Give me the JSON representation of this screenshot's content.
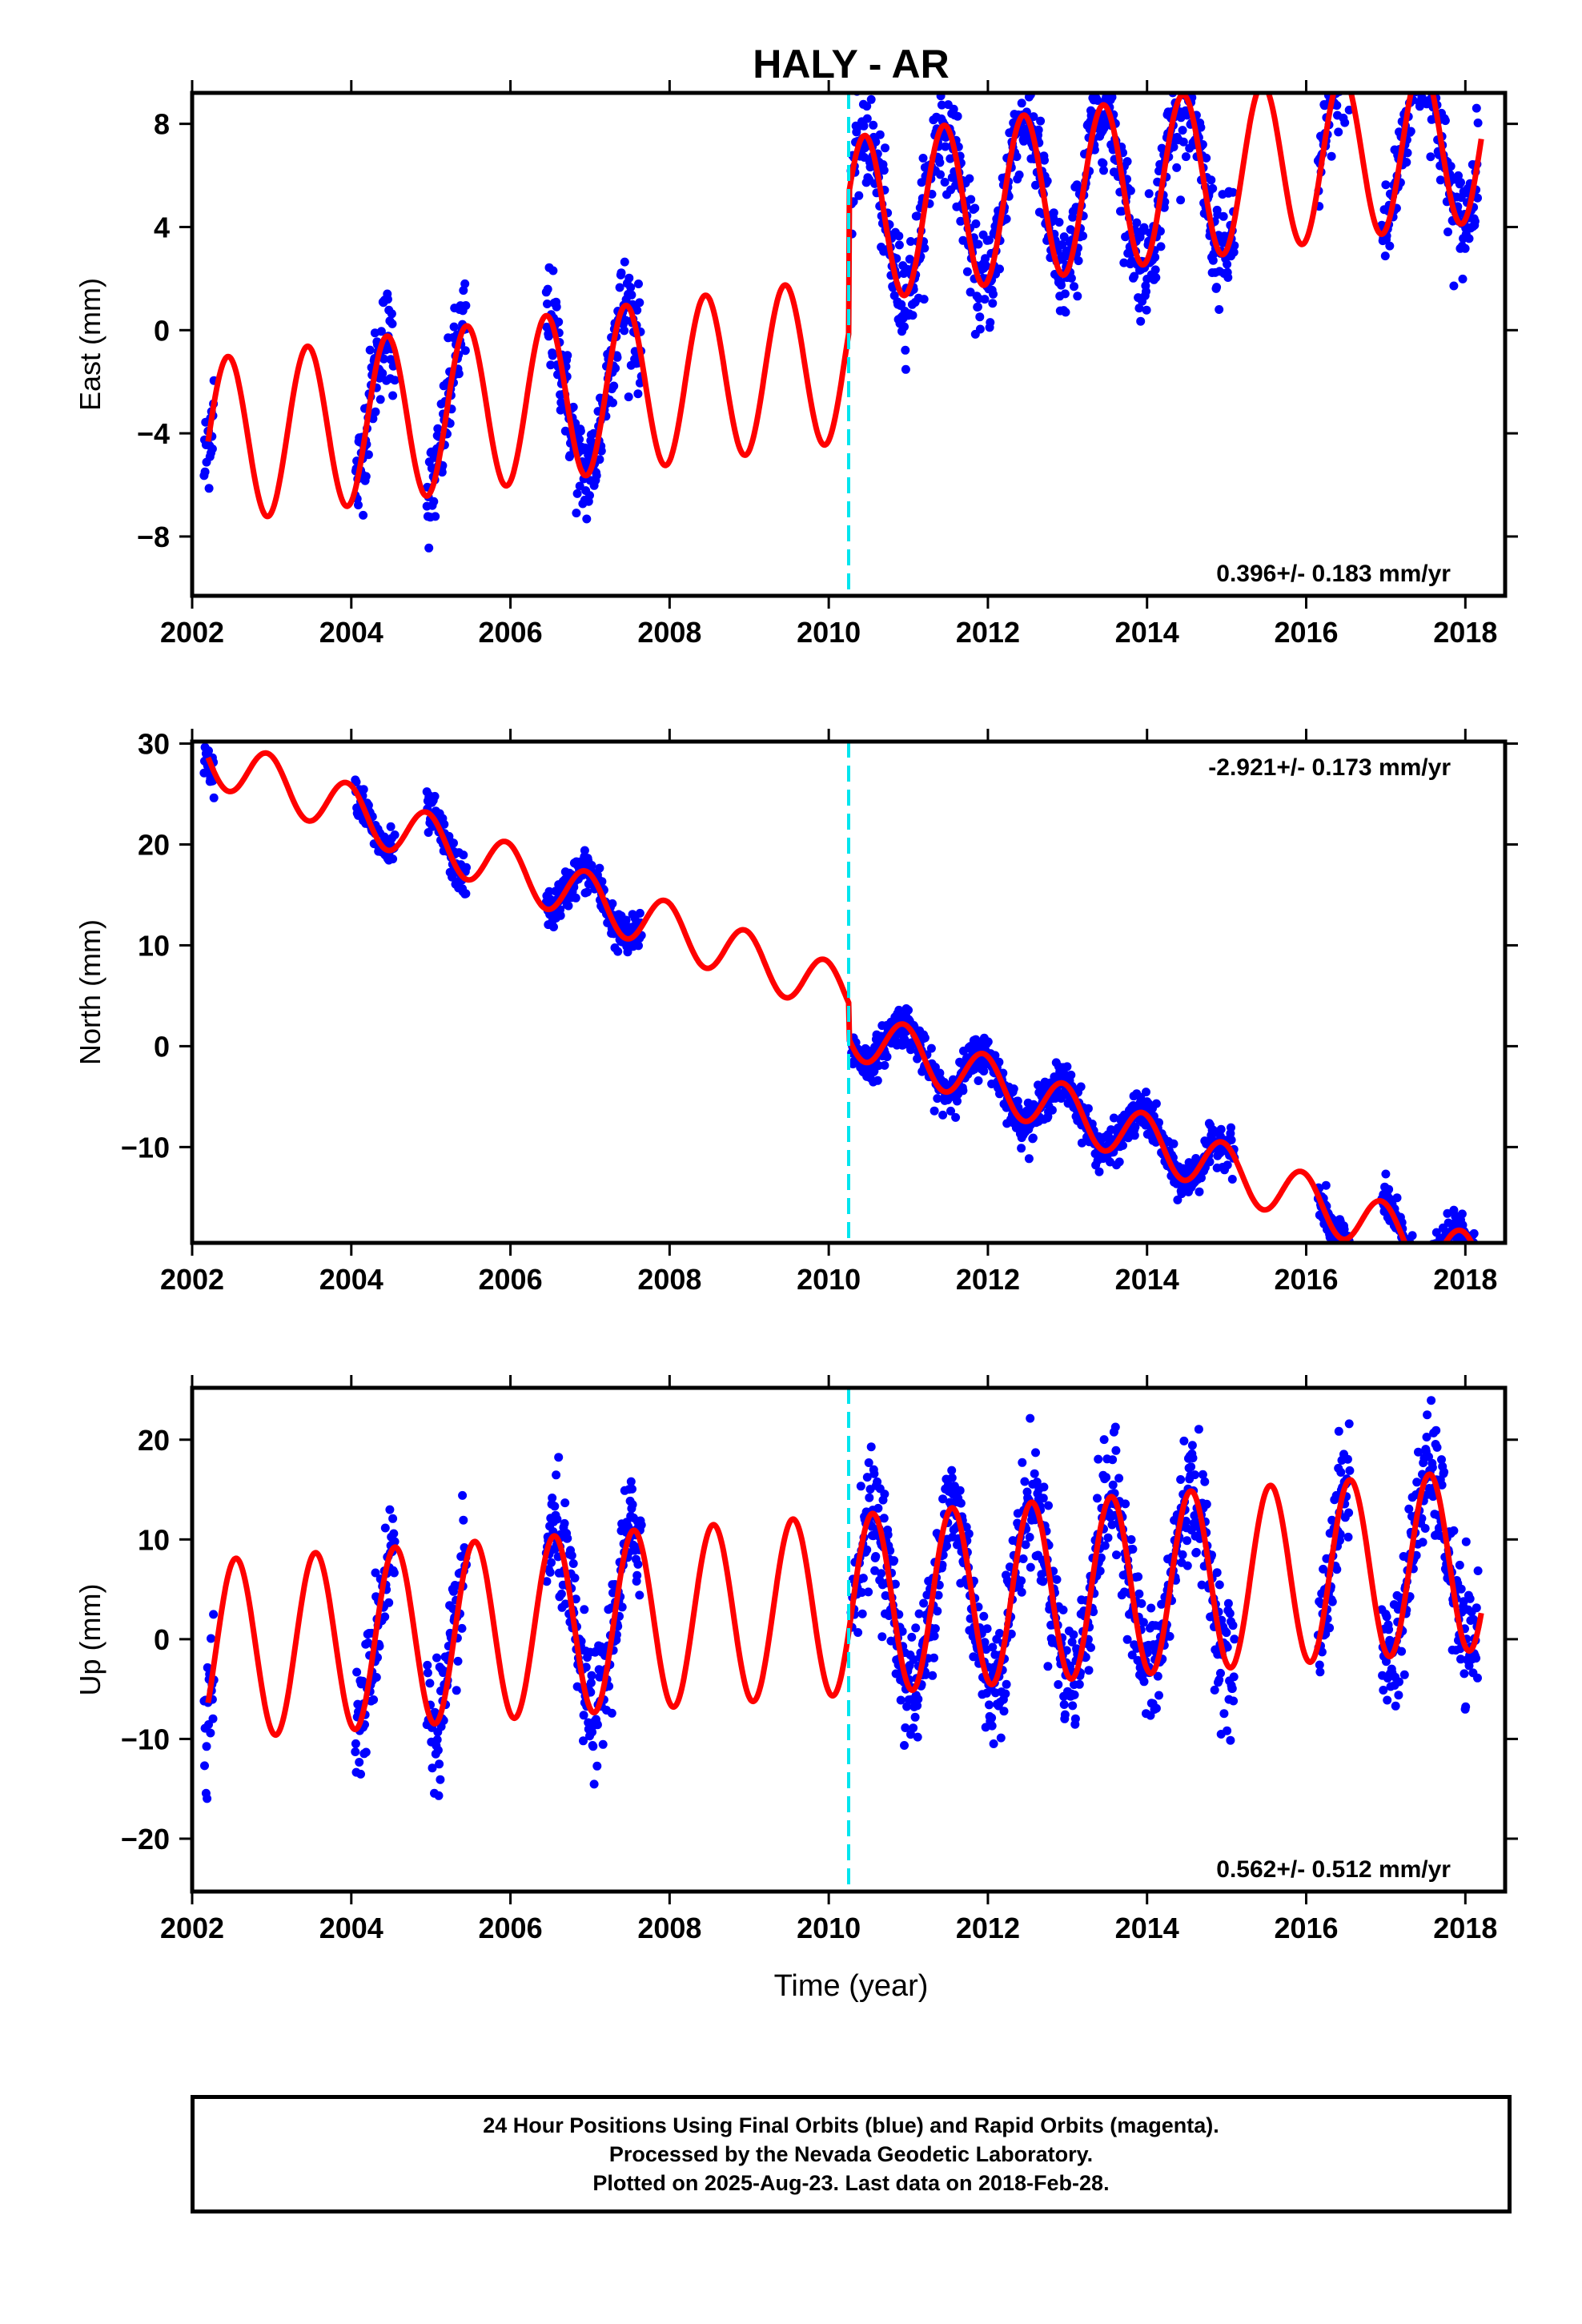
{
  "title": "HALY - AR",
  "xlabel": "Time (year)",
  "footer": {
    "line1": "24 Hour Positions Using Final Orbits (blue) and Rapid Orbits (magenta).",
    "line2": "Processed by the Nevada Geodetic Laboratory.",
    "line3": "Plotted on 2025-Aug-23. Last data on 2018-Feb-28."
  },
  "colors": {
    "data": "#0000ff",
    "model": "#ff0000",
    "offset_line": "#00e5ee"
  },
  "chart_data": [
    {
      "type": "scatter",
      "component": "East",
      "ylabel": "East (mm)",
      "xlim": [
        2002,
        2018.5
      ],
      "ylim": [
        -10.3,
        9.2
      ],
      "xticks": [
        2002,
        2004,
        2006,
        2008,
        2010,
        2012,
        2014,
        2016,
        2018
      ],
      "yticks": [
        -8,
        -4,
        0,
        4,
        8
      ],
      "yticklabels": [
        "−8",
        "−4",
        "0",
        "4",
        "8"
      ],
      "offset_epoch": 2010.25,
      "rate_label": "0.396+/- 0.183 mm/yr",
      "rate_label_position": "bottom-right",
      "model": {
        "a0": -4.4,
        "trend_pre": 0.396,
        "step": 5.4,
        "trend_post": 0.396,
        "amp": 3.2,
        "phase_peak": 0.45
      },
      "data_segments": [
        [
          2002.15,
          2002.28
        ],
        [
          2004.05,
          2004.55
        ],
        [
          2004.95,
          2005.45
        ],
        [
          2006.45,
          2007.65
        ],
        [
          2010.28,
          2015.1
        ],
        [
          2016.15,
          2016.55
        ],
        [
          2016.95,
          2018.16
        ]
      ],
      "noise_mm": 1.0
    },
    {
      "type": "scatter",
      "component": "North",
      "ylabel": "North (mm)",
      "xlim": [
        2002,
        2018.5
      ],
      "ylim": [
        -19.5,
        30.2
      ],
      "xticks": [
        2002,
        2004,
        2006,
        2008,
        2010,
        2012,
        2014,
        2016,
        2018
      ],
      "yticks": [
        -10,
        0,
        10,
        20,
        30
      ],
      "yticklabels": [
        "−10",
        "0",
        "10",
        "20",
        "30"
      ],
      "offset_epoch": 2010.25,
      "rate_label": "-2.921+/- 0.173 mm/yr",
      "rate_label_position": "top-right",
      "model": {
        "a0": 29.2,
        "trend_pre": -2.921,
        "step": -3.5,
        "trend_post": -2.921,
        "amp": 2.6,
        "phase_peak": 0.95
      },
      "data_segments": [
        [
          2002.15,
          2002.28
        ],
        [
          2004.05,
          2004.55
        ],
        [
          2004.95,
          2005.45
        ],
        [
          2006.45,
          2007.65
        ],
        [
          2010.28,
          2015.1
        ],
        [
          2016.15,
          2016.55
        ],
        [
          2016.95,
          2018.16
        ]
      ],
      "noise_mm": 1.0
    },
    {
      "type": "scatter",
      "component": "Up",
      "ylabel": "Up (mm)",
      "xlim": [
        2002,
        2018.5
      ],
      "ylim": [
        -25.3,
        25.2
      ],
      "xticks": [
        2002,
        2004,
        2006,
        2008,
        2010,
        2012,
        2014,
        2016,
        2018
      ],
      "yticks": [
        -20,
        -10,
        0,
        10,
        20
      ],
      "yticklabels": [
        "−20",
        "−10",
        "0",
        "10",
        "20"
      ],
      "offset_epoch": 2010.25,
      "rate_label": "0.562+/- 0.512 mm/yr",
      "rate_label_position": "bottom-right",
      "model": {
        "a0": -1.2,
        "trend_pre": 0.562,
        "step": 0.0,
        "trend_post": 0.562,
        "amp": 9.0,
        "phase_peak": 0.55
      },
      "data_segments": [
        [
          2002.15,
          2002.28
        ],
        [
          2004.05,
          2004.55
        ],
        [
          2004.95,
          2005.45
        ],
        [
          2006.45,
          2007.65
        ],
        [
          2010.28,
          2015.1
        ],
        [
          2016.15,
          2016.55
        ],
        [
          2016.95,
          2018.16
        ]
      ],
      "noise_mm": 3.0
    }
  ]
}
